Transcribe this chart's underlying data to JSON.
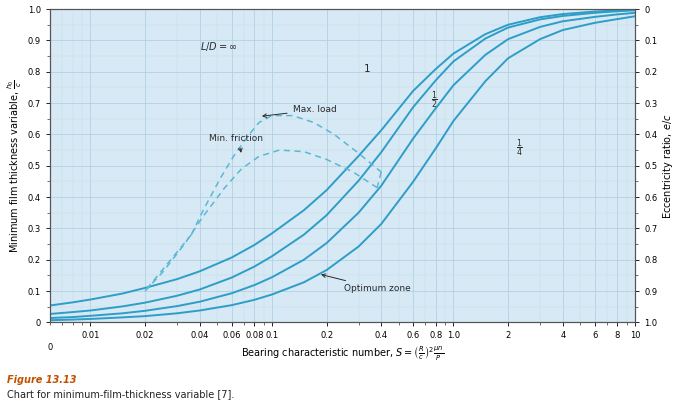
{
  "xlabel": "Bearing characteristic number, $S = \\left(\\frac{R}{c}\\right)^2 \\frac{\\mu n}{P}$",
  "ylabel_left": "Minimum film thickness variable, $\\frac{h_0}{c}$",
  "ylabel_right": "Eccentricity ratio, $e/c$",
  "background_color": "#d6e9f5",
  "line_color": "#2e9dc8",
  "dashed_line_color": "#5bb8d4",
  "grid_major_color": "#b0cfe0",
  "grid_minor_color": "#c8dde8",
  "figure_label": "Figure 13.13",
  "figure_caption": "Chart for minimum-film-thickness variable [7].",
  "curves": {
    "inf": {
      "S": [
        0.001,
        0.002,
        0.004,
        0.006,
        0.008,
        0.01,
        0.015,
        0.02,
        0.03,
        0.04,
        0.06,
        0.08,
        0.1,
        0.15,
        0.2,
        0.3,
        0.4,
        0.6,
        0.8,
        1.0,
        1.5,
        2.0,
        3.0,
        4.0,
        6.0,
        8.0,
        10.0
      ],
      "h": [
        0.018,
        0.028,
        0.042,
        0.054,
        0.064,
        0.073,
        0.092,
        0.11,
        0.138,
        0.163,
        0.207,
        0.247,
        0.284,
        0.358,
        0.422,
        0.531,
        0.613,
        0.739,
        0.809,
        0.858,
        0.92,
        0.95,
        0.974,
        0.984,
        0.992,
        0.996,
        0.998
      ]
    },
    "1": {
      "S": [
        0.001,
        0.002,
        0.004,
        0.006,
        0.008,
        0.01,
        0.015,
        0.02,
        0.03,
        0.04,
        0.06,
        0.08,
        0.1,
        0.15,
        0.2,
        0.3,
        0.4,
        0.6,
        0.8,
        1.0,
        1.5,
        2.0,
        3.0,
        4.0,
        6.0,
        8.0,
        10.0
      ],
      "h": [
        0.008,
        0.013,
        0.02,
        0.027,
        0.033,
        0.038,
        0.051,
        0.063,
        0.085,
        0.105,
        0.143,
        0.178,
        0.211,
        0.28,
        0.342,
        0.452,
        0.543,
        0.687,
        0.773,
        0.833,
        0.906,
        0.941,
        0.967,
        0.978,
        0.988,
        0.993,
        0.996
      ]
    },
    "half": {
      "S": [
        0.001,
        0.002,
        0.004,
        0.006,
        0.008,
        0.01,
        0.015,
        0.02,
        0.03,
        0.04,
        0.06,
        0.08,
        0.1,
        0.15,
        0.2,
        0.3,
        0.4,
        0.6,
        0.8,
        1.0,
        1.5,
        2.0,
        3.0,
        4.0,
        6.0,
        8.0,
        10.0
      ],
      "h": [
        0.004,
        0.006,
        0.01,
        0.014,
        0.017,
        0.021,
        0.029,
        0.037,
        0.052,
        0.066,
        0.093,
        0.119,
        0.144,
        0.2,
        0.253,
        0.35,
        0.436,
        0.587,
        0.684,
        0.757,
        0.854,
        0.904,
        0.943,
        0.961,
        0.975,
        0.983,
        0.988
      ]
    },
    "quarter": {
      "S": [
        0.001,
        0.002,
        0.004,
        0.006,
        0.008,
        0.01,
        0.015,
        0.02,
        0.03,
        0.04,
        0.06,
        0.08,
        0.1,
        0.15,
        0.2,
        0.3,
        0.4,
        0.6,
        0.8,
        1.0,
        1.5,
        2.0,
        3.0,
        4.0,
        6.0,
        8.0,
        10.0
      ],
      "h": [
        0.002,
        0.003,
        0.005,
        0.007,
        0.009,
        0.011,
        0.016,
        0.02,
        0.029,
        0.038,
        0.055,
        0.072,
        0.089,
        0.128,
        0.167,
        0.242,
        0.314,
        0.449,
        0.556,
        0.643,
        0.77,
        0.843,
        0.904,
        0.933,
        0.956,
        0.968,
        0.977
      ]
    }
  },
  "max_load_S": [
    0.036,
    0.042,
    0.052,
    0.063,
    0.075,
    0.085,
    0.1,
    0.13,
    0.17,
    0.22,
    0.3,
    0.4
  ],
  "max_load_h": [
    0.28,
    0.36,
    0.46,
    0.54,
    0.6,
    0.638,
    0.66,
    0.66,
    0.638,
    0.6,
    0.54,
    0.48
  ],
  "min_fric_S": [
    0.02,
    0.025,
    0.033,
    0.042,
    0.055,
    0.068,
    0.085,
    0.11,
    0.15,
    0.2,
    0.28,
    0.38
  ],
  "min_fric_h": [
    0.1,
    0.16,
    0.25,
    0.34,
    0.43,
    0.49,
    0.53,
    0.55,
    0.545,
    0.52,
    0.48,
    0.43
  ],
  "x_major_ticks": [
    0.01,
    0.02,
    0.04,
    0.06,
    0.08,
    0.1,
    0.2,
    0.4,
    0.6,
    0.8,
    1.0,
    2,
    4,
    6,
    8,
    10
  ],
  "x_tick_labels": [
    "0.01",
    "0.02",
    "0.04",
    "0.06",
    "0.08",
    "0.1",
    "0.2",
    "0.4",
    "0.6",
    "0.8",
    "1.0",
    "2",
    "4",
    "6",
    "8",
    "10"
  ],
  "y_ticks": [
    0.0,
    0.1,
    0.2,
    0.3,
    0.4,
    0.5,
    0.6,
    0.7,
    0.8,
    0.9,
    1.0
  ],
  "y_tick_labels": [
    "0",
    "0.1",
    "0.2",
    "0.3",
    "0.4",
    "0.5",
    "0.6",
    "0.7",
    "0.8",
    "0.9",
    "1.0"
  ],
  "y_right_labels": [
    "0",
    "0.1",
    "0.2",
    "0.3",
    "0.4",
    "0.5",
    "0.6",
    "0.7",
    "0.8",
    "0.9",
    "1.0"
  ]
}
